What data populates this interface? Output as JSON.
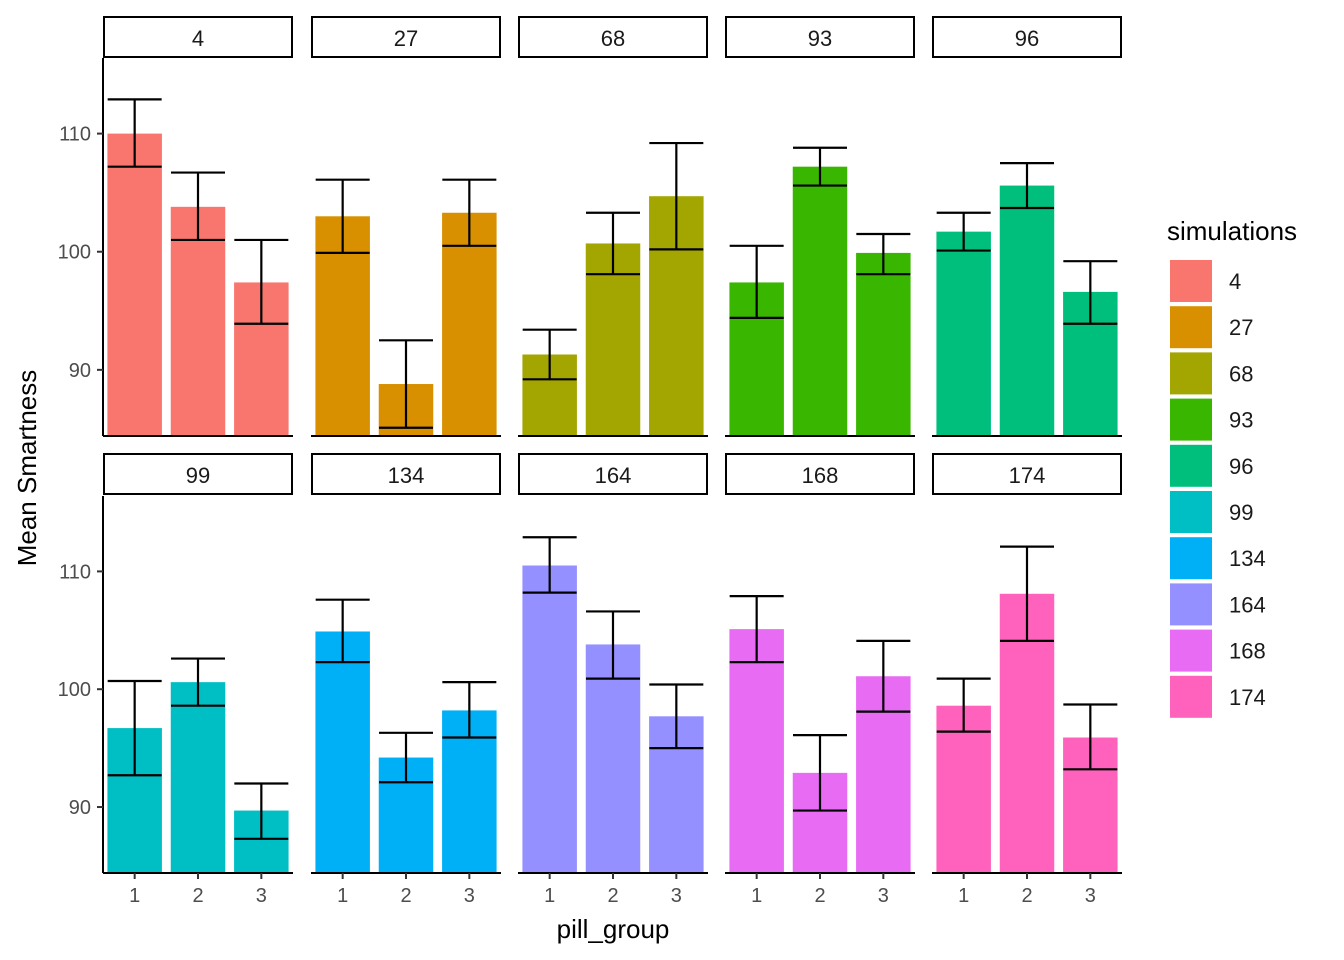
{
  "chart_data": {
    "type": "bar",
    "facet_var": "simulations",
    "panels": [
      {
        "label": "4",
        "color": "#F8766D",
        "values": [
          110.0,
          103.8,
          97.4
        ],
        "lower": [
          107.2,
          101.0,
          93.9
        ],
        "upper": [
          112.9,
          106.7,
          101.0
        ]
      },
      {
        "label": "27",
        "color": "#D89000",
        "values": [
          103.0,
          88.8,
          103.3
        ],
        "lower": [
          99.9,
          85.1,
          100.5
        ],
        "upper": [
          106.1,
          92.5,
          106.1
        ]
      },
      {
        "label": "68",
        "color": "#A3A500",
        "values": [
          91.3,
          100.7,
          104.7
        ],
        "lower": [
          89.2,
          98.1,
          100.2
        ],
        "upper": [
          93.4,
          103.3,
          109.2
        ]
      },
      {
        "label": "93",
        "color": "#39B600",
        "values": [
          97.4,
          107.2,
          99.9
        ],
        "lower": [
          94.4,
          105.6,
          98.1
        ],
        "upper": [
          100.5,
          108.8,
          101.5
        ]
      },
      {
        "label": "96",
        "color": "#00BF7D",
        "values": [
          101.7,
          105.6,
          96.6
        ],
        "lower": [
          100.1,
          103.7,
          93.9
        ],
        "upper": [
          103.3,
          107.5,
          99.2
        ]
      },
      {
        "label": "99",
        "color": "#00BFC4",
        "values": [
          96.7,
          100.6,
          89.7
        ],
        "lower": [
          92.7,
          98.6,
          87.3
        ],
        "upper": [
          100.7,
          102.6,
          92.0
        ]
      },
      {
        "label": "134",
        "color": "#00B0F6",
        "values": [
          104.9,
          94.2,
          98.2
        ],
        "lower": [
          102.3,
          92.1,
          95.9
        ],
        "upper": [
          107.6,
          96.3,
          100.6
        ]
      },
      {
        "label": "164",
        "color": "#9590FF",
        "values": [
          110.5,
          103.8,
          97.7
        ],
        "lower": [
          108.2,
          100.9,
          95.0
        ],
        "upper": [
          112.9,
          106.6,
          100.4
        ]
      },
      {
        "label": "168",
        "color": "#E76BF3",
        "values": [
          105.1,
          92.9,
          101.1
        ],
        "lower": [
          102.3,
          89.7,
          98.1
        ],
        "upper": [
          107.9,
          96.1,
          104.1
        ]
      },
      {
        "label": "174",
        "color": "#FF62BC",
        "values": [
          98.6,
          108.1,
          95.9
        ],
        "lower": [
          96.4,
          104.1,
          93.2
        ],
        "upper": [
          100.9,
          112.1,
          98.7
        ]
      }
    ],
    "categories": [
      "1",
      "2",
      "3"
    ],
    "y_ticks": [
      90,
      100,
      110
    ],
    "ylim": [
      84.4,
      116.4
    ],
    "xlabel": "pill_group",
    "ylabel": "Mean Smartness",
    "legend": {
      "title": "simulations",
      "position": "right",
      "items": [
        {
          "label": "4",
          "color": "#F8766D"
        },
        {
          "label": "27",
          "color": "#D89000"
        },
        {
          "label": "68",
          "color": "#A3A500"
        },
        {
          "label": "93",
          "color": "#39B600"
        },
        {
          "label": "96",
          "color": "#00BF7D"
        },
        {
          "label": "99",
          "color": "#00BFC4"
        },
        {
          "label": "134",
          "color": "#00B0F6"
        },
        {
          "label": "164",
          "color": "#9590FF"
        },
        {
          "label": "168",
          "color": "#E76BF3"
        },
        {
          "label": "174",
          "color": "#FF62BC"
        }
      ]
    },
    "grid": false
  }
}
